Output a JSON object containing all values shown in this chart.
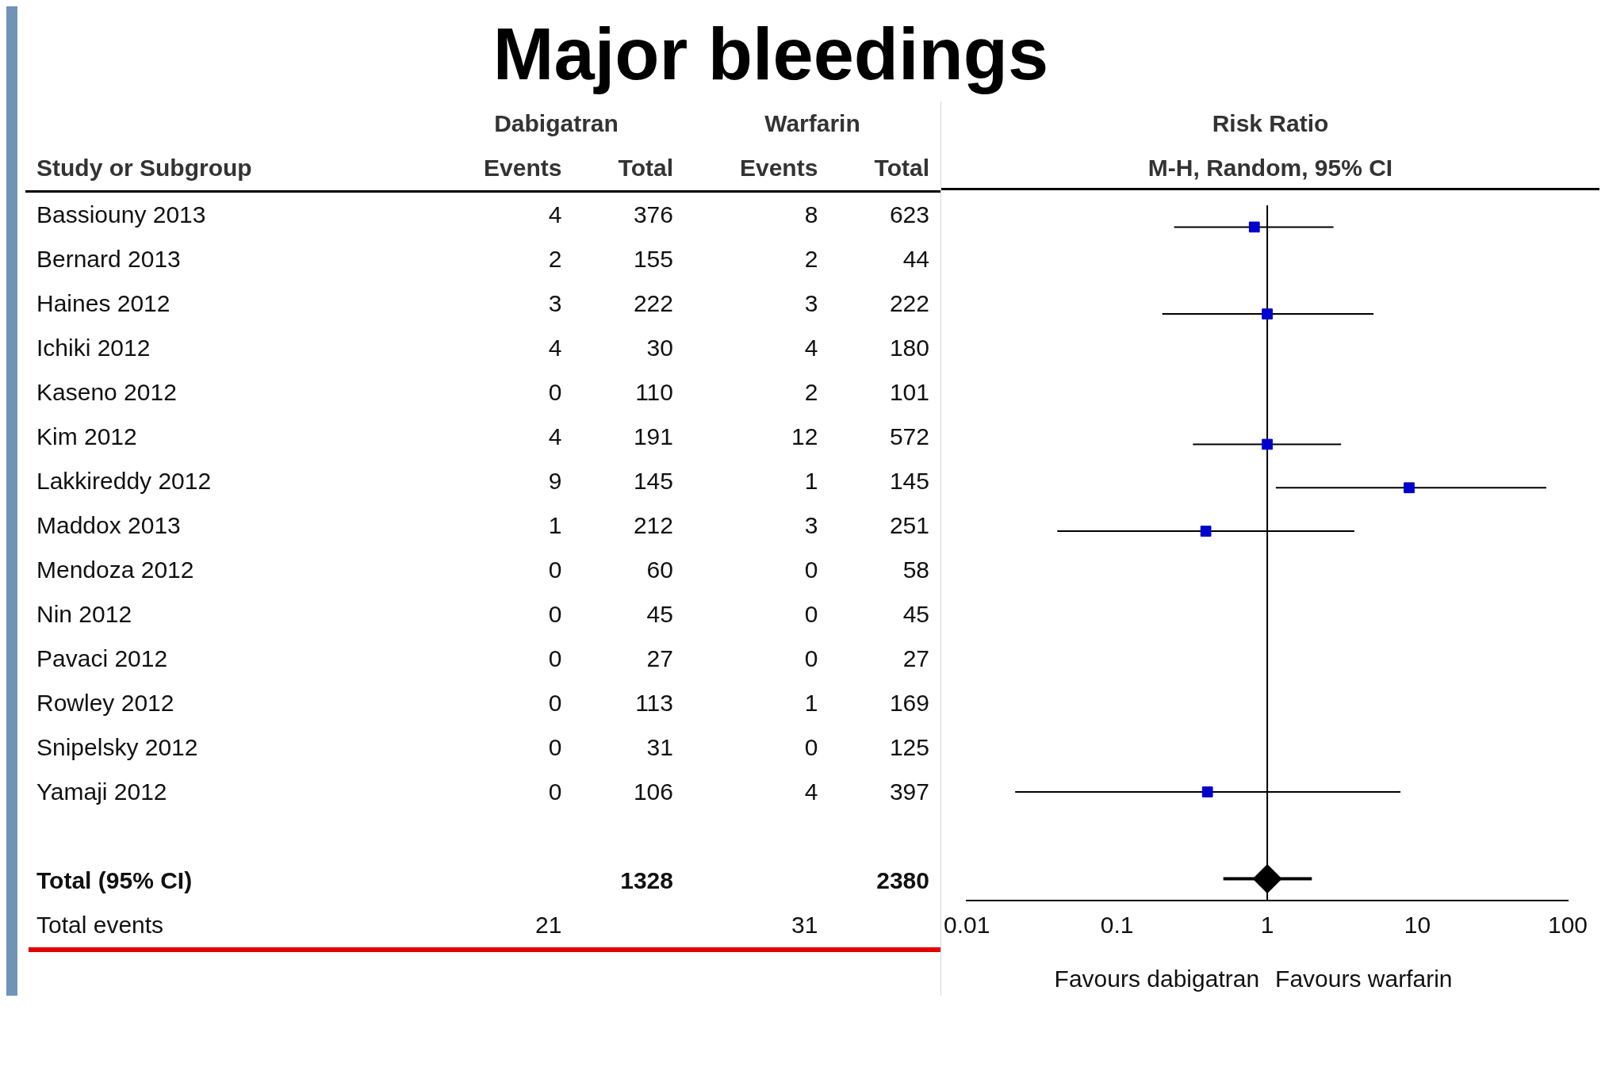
{
  "chart_data": [
    {
      "type": "other",
      "title": "Major bleedings",
      "ylabel": "Study or Subgroup",
      "annotations": [
        "Dabigatran",
        "Warfarin"
      ],
      "categories": [
        "Events",
        "Total",
        "Events",
        "Total"
      ],
      "y_categories": [
        "Bassiouny 2013",
        "Bernard 2013",
        "Haines 2012",
        "Ichiki 2012",
        "Kaseno 2012",
        "Kim 2012",
        "Lakkireddy 2012",
        "Maddox 2013",
        "Mendoza 2012",
        "Nin 2012",
        "Pavaci 2012",
        "Rowley 2012",
        "Snipelsky 2012",
        "Yamaji 2012",
        null,
        "Total (95% CI)",
        "Total events"
      ],
      "cell_labels": [
        [
          "4",
          "376",
          "8",
          "623"
        ],
        [
          "2",
          "155",
          "2",
          "44"
        ],
        [
          "3",
          "222",
          "3",
          "222"
        ],
        [
          "4",
          "30",
          "4",
          "180"
        ],
        [
          "0",
          "110",
          "2",
          "101"
        ],
        [
          "4",
          "191",
          "12",
          "572"
        ],
        [
          "9",
          "145",
          "1",
          "145"
        ],
        [
          "1",
          "212",
          "3",
          "251"
        ],
        [
          "0",
          "60",
          "0",
          "58"
        ],
        [
          "0",
          "45",
          "0",
          "45"
        ],
        [
          "0",
          "27",
          "0",
          "27"
        ],
        [
          "0",
          "113",
          "1",
          "169"
        ],
        [
          "0",
          "31",
          "0",
          "125"
        ],
        [
          "0",
          "106",
          "4",
          "397"
        ],
        [
          null,
          null,
          null,
          null
        ],
        [
          null,
          "1328",
          null,
          "2380"
        ],
        [
          "21",
          null,
          "31",
          null
        ]
      ]
    },
    {
      "type": "scatter",
      "orientation": "horizontal",
      "title": "Risk Ratio",
      "subtitle": "M-H, Random, 95% CI",
      "log": "x",
      "xlim": [
        0.01,
        100
      ],
      "xticks": [
        {
          "value": 0.01,
          "label": "0.01"
        },
        {
          "value": 0.1,
          "label": "0.1"
        },
        1,
        10,
        100
      ],
      "tick_labels": "x",
      "marker": "square",
      "categories": [
        null,
        null,
        null,
        null,
        null,
        null,
        null,
        null,
        null,
        null,
        null,
        null,
        null,
        null,
        null,
        null
      ],
      "series": [
        {
          "color": "#0000cc",
          "values": [
            0.82,
            null,
            1.0,
            null,
            null,
            1.0,
            8.8,
            0.39,
            null,
            null,
            null,
            null,
            null,
            0.4,
            null,
            null
          ],
          "errors": [
            [
              0.24,
              2.76
            ],
            null,
            [
              0.2,
              5.1
            ],
            null,
            null,
            [
              0.32,
              3.1
            ],
            [
              1.14,
              72
            ],
            [
              0.04,
              3.8
            ],
            null,
            null,
            null,
            null,
            null,
            [
              0.021,
              7.7
            ],
            null,
            null
          ]
        },
        {
          "color": "#000000",
          "marker": "diamond",
          "values": [
            null,
            null,
            null,
            null,
            null,
            null,
            null,
            null,
            null,
            null,
            null,
            null,
            null,
            null,
            null,
            1.0
          ],
          "errors": [
            null,
            null,
            null,
            null,
            null,
            null,
            null,
            null,
            null,
            null,
            null,
            null,
            null,
            null,
            null,
            [
              0.51,
              1.98
            ]
          ]
        }
      ],
      "ref_lines": [
        {
          "axis": "x",
          "value": 1,
          "color": "#000000"
        }
      ],
      "annotations": [
        "Favours dabigatran",
        "Favours warfarin"
      ]
    }
  ]
}
